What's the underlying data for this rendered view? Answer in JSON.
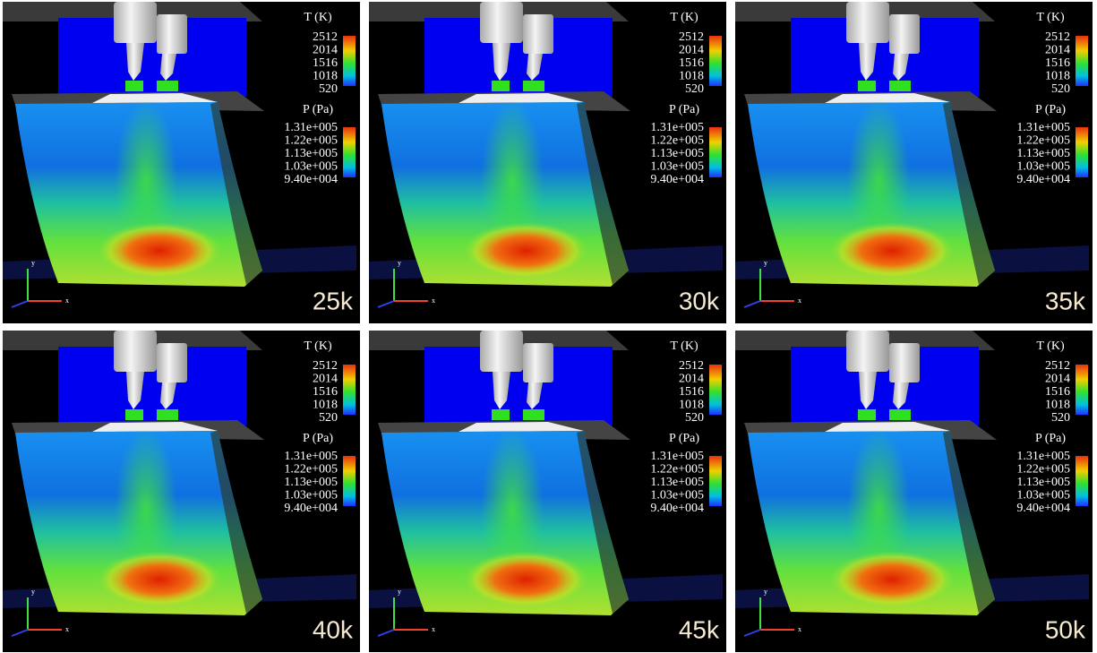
{
  "legends": {
    "temperature": {
      "title": "T (K)",
      "labels": [
        "2512",
        "2014",
        "1516",
        "1018",
        "520"
      ]
    },
    "pressure": {
      "title": "P (Pa)",
      "labels": [
        "1.31e+005",
        "1.22e+005",
        "1.13e+005",
        "1.03e+005",
        "9.40e+004"
      ]
    }
  },
  "axes": {
    "x": "x",
    "y": "y"
  },
  "panels": [
    {
      "label": "25k"
    },
    {
      "label": "30k"
    },
    {
      "label": "35k"
    },
    {
      "label": "40k"
    },
    {
      "label": "45k"
    },
    {
      "label": "50k"
    }
  ]
}
